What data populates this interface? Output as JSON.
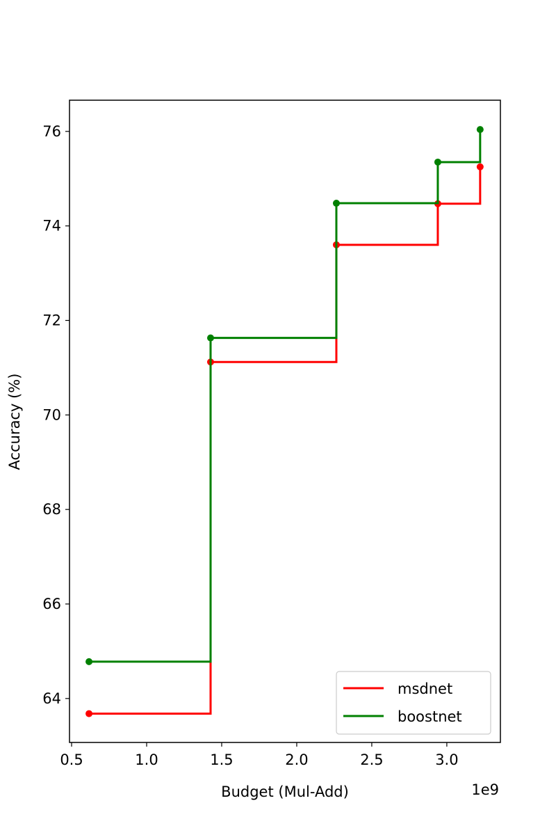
{
  "chart_data": {
    "type": "step",
    "xlabel": "Budget (Mul-Add)",
    "ylabel": "Accuracy (%)",
    "x_offset_label": "1e9",
    "x": [
      0.616,
      1.426,
      2.264,
      2.94,
      3.222
    ],
    "series": [
      {
        "name": "msdnet",
        "color": "#ff0000",
        "values": [
          63.68,
          71.12,
          73.6,
          74.47,
          75.25
        ]
      },
      {
        "name": "boostnet",
        "color": "#008000",
        "values": [
          64.78,
          71.63,
          74.48,
          75.35,
          76.04
        ]
      }
    ],
    "xlim": [
      0.486,
      3.357
    ],
    "xticks": [
      {
        "value": 0.5,
        "label": "0.5"
      },
      {
        "value": 1,
        "label": "1.0"
      },
      {
        "value": 1.5,
        "label": "1.5"
      },
      {
        "value": 2,
        "label": "2.0"
      },
      {
        "value": 2.5,
        "label": "2.5"
      },
      {
        "value": 3,
        "label": "3.0"
      }
    ],
    "ylim": [
      63.07,
      76.66
    ],
    "yticks": [
      64,
      66,
      68,
      70,
      72,
      74,
      76
    ],
    "grid": false,
    "legend": "lower right"
  }
}
